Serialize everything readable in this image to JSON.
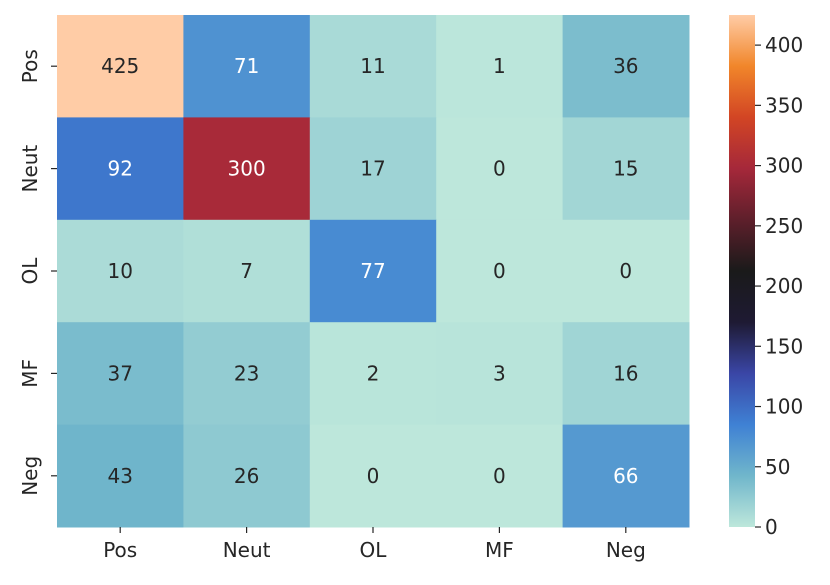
{
  "chart_data": {
    "type": "heatmap",
    "title": "",
    "xlabel": "",
    "ylabel": "",
    "x_categories": [
      "Pos",
      "Neut",
      "OL",
      "MF",
      "Neg"
    ],
    "y_categories": [
      "Pos",
      "Neut",
      "OL",
      "MF",
      "Neg"
    ],
    "values": [
      [
        425,
        71,
        11,
        1,
        36
      ],
      [
        92,
        300,
        17,
        0,
        15
      ],
      [
        10,
        7,
        77,
        0,
        0
      ],
      [
        37,
        23,
        2,
        3,
        16
      ],
      [
        43,
        26,
        0,
        0,
        66
      ]
    ],
    "colorbar": {
      "min": 0,
      "max": 425,
      "ticks": [
        0,
        50,
        100,
        150,
        200,
        250,
        300,
        350,
        400
      ]
    },
    "colormap": "icefire",
    "colormap_stops": [
      "#bde7db",
      "#70b6cb",
      "#3f81d4",
      "#3a46a6",
      "#1e1a33",
      "#1a1a1a",
      "#5e1f2b",
      "#a5283a",
      "#d24524",
      "#f1862a",
      "#ffcca6"
    ],
    "annotations": true
  }
}
